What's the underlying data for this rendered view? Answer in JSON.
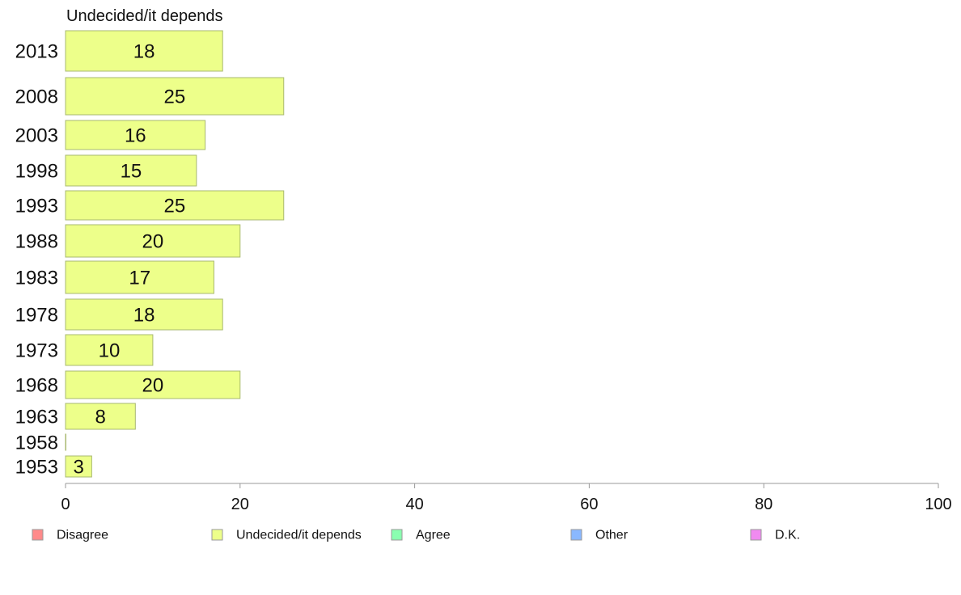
{
  "chart_data": {
    "type": "bar",
    "orientation": "horizontal",
    "title": "Undecided/it depends",
    "categories": [
      "2013",
      "2008",
      "2003",
      "1998",
      "1993",
      "1988",
      "1983",
      "1978",
      "1973",
      "1968",
      "1963",
      "1958",
      "1953"
    ],
    "series": [
      {
        "name": "Undecided/it depends",
        "color": "#edff8a",
        "values": [
          18,
          25,
          16,
          15,
          25,
          20,
          17,
          18,
          10,
          20,
          8,
          0,
          3
        ],
        "labels": [
          "18",
          "25",
          "16",
          "15",
          "25",
          "20",
          "17",
          "18",
          "10",
          "20",
          "8",
          "",
          "3"
        ]
      }
    ],
    "xlim": [
      0,
      100
    ],
    "xticks": [
      "0",
      "20",
      "40",
      "60",
      "80",
      "100"
    ],
    "grid": false,
    "legend": {
      "placement": "bottom",
      "entries": [
        {
          "label": "Disagree",
          "color": "#ff8a8a"
        },
        {
          "label": "Undecided/it depends",
          "color": "#edff8a"
        },
        {
          "label": "Agree",
          "color": "#8affb0"
        },
        {
          "label": "Other",
          "color": "#8ab8ff"
        },
        {
          "label": "D.K.",
          "color": "#f08af0"
        }
      ]
    }
  }
}
